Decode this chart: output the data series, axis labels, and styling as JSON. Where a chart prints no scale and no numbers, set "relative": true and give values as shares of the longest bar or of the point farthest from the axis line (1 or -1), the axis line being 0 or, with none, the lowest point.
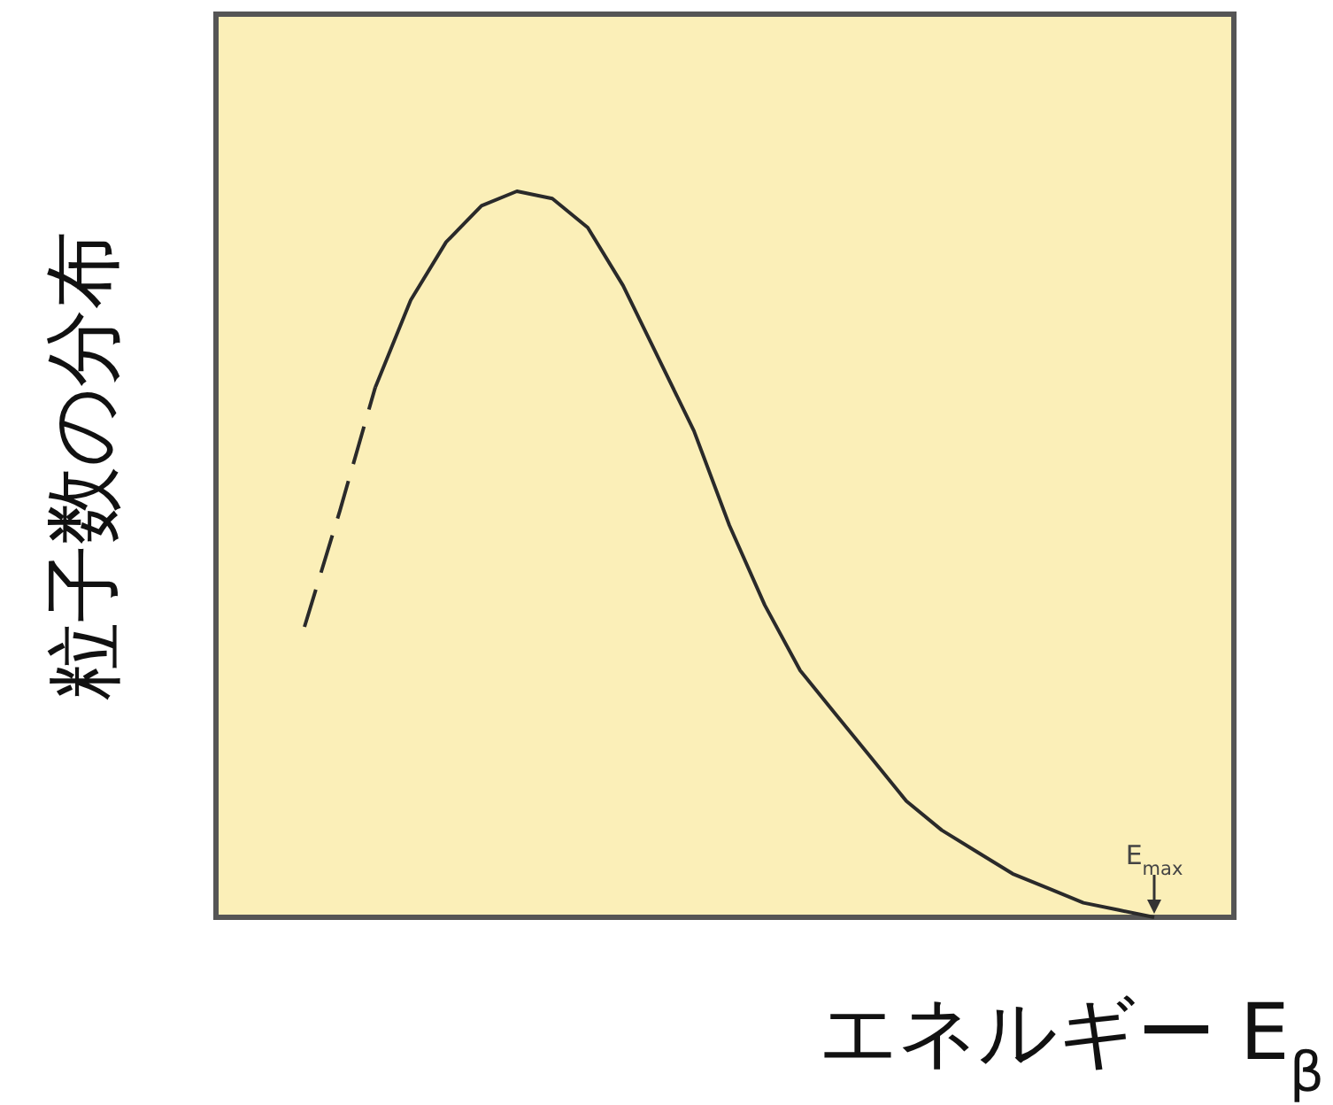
{
  "chart_data": {
    "type": "line",
    "relative": true,
    "ylabel": "粒子数の分布",
    "xlabel": "エネルギー   E$_{β}$",
    "categories": [
      null,
      null,
      null,
      null,
      null,
      null,
      null,
      null,
      null,
      null,
      null,
      null,
      null,
      null,
      null,
      null,
      null,
      null,
      null,
      null,
      null,
      null,
      null,
      null,
      null
    ],
    "series": [
      {
        "color": "#2a2a2a",
        "line_style": "dashed",
        "values": [
          0.4,
          0.56,
          0.73,
          null,
          null,
          null,
          null,
          null,
          null,
          null,
          null,
          null,
          null,
          null,
          null,
          null,
          null,
          null,
          null,
          null,
          null,
          null,
          null,
          null,
          null
        ]
      },
      {
        "color": "#2a2a2a",
        "line_style": "solid",
        "values": [
          null,
          null,
          0.73,
          0.85,
          0.93,
          0.98,
          1.0,
          0.99,
          0.95,
          0.87,
          0.77,
          0.67,
          0.54,
          0.43,
          0.34,
          0.28,
          0.22,
          0.16,
          0.12,
          0.09,
          0.06,
          0.04,
          0.02,
          0.01,
          0
        ]
      }
    ],
    "annotations": [
      {
        "text": "E$_{max}$",
        "y": 0
      }
    ],
    "marker": "none"
  }
}
